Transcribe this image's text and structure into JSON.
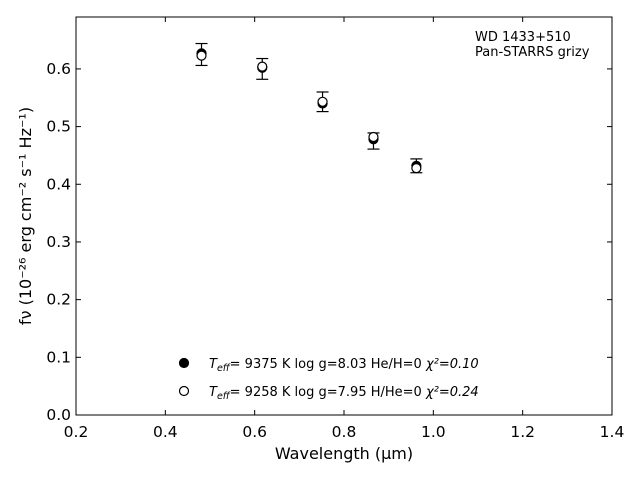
{
  "chart_data": {
    "type": "scatter",
    "xlabel": "Wavelength (μm)",
    "ylabel": "fν (10⁻²⁶ erg cm⁻² s⁻¹ Hz⁻¹)",
    "xlim": [
      0.2,
      1.4
    ],
    "ylim": [
      0.0,
      0.69
    ],
    "x_ticks": [
      "0.2",
      "0.4",
      "0.6",
      "0.8",
      "1.0",
      "1.2",
      "1.4"
    ],
    "y_ticks": [
      "0.0",
      "0.1",
      "0.2",
      "0.3",
      "0.4",
      "0.5",
      "0.6"
    ],
    "grid": false,
    "annotation": [
      "WD 1433+510",
      "Pan-STARRS grizy"
    ],
    "observed": {
      "x": [
        0.481,
        0.617,
        0.752,
        0.866,
        0.962
      ],
      "y": [
        0.625,
        0.6,
        0.543,
        0.475,
        0.432
      ],
      "err": [
        0.019,
        0.018,
        0.017,
        0.014,
        0.012
      ]
    },
    "series": [
      {
        "name": "T_eff=  9375 K  log g=8.03  He/H=0  χ²=0.10",
        "marker": "filled-circle",
        "x": [
          0.481,
          0.617,
          0.752,
          0.866,
          0.962
        ],
        "y": [
          0.627,
          0.602,
          0.54,
          0.478,
          0.432
        ]
      },
      {
        "name": "T_eff=  9258 K  log g=7.95  H/He=0  χ²=0.24",
        "marker": "open-circle",
        "x": [
          0.481,
          0.617,
          0.752,
          0.866,
          0.962
        ],
        "y": [
          0.623,
          0.604,
          0.543,
          0.482,
          0.428
        ]
      }
    ],
    "legend": [
      {
        "marker": "filled-circle",
        "teff": "9375 K",
        "logg": "log g=8.03",
        "comp": "He/H=0",
        "chi": "χ²=0.10"
      },
      {
        "marker": "open-circle",
        "teff": "9258 K",
        "logg": "log g=7.95",
        "comp": "H/He=0",
        "chi": "χ²=0.24"
      }
    ],
    "legend_placement": "bottom-center",
    "colors": {
      "marker": "#000000",
      "axis": "#000000"
    }
  }
}
